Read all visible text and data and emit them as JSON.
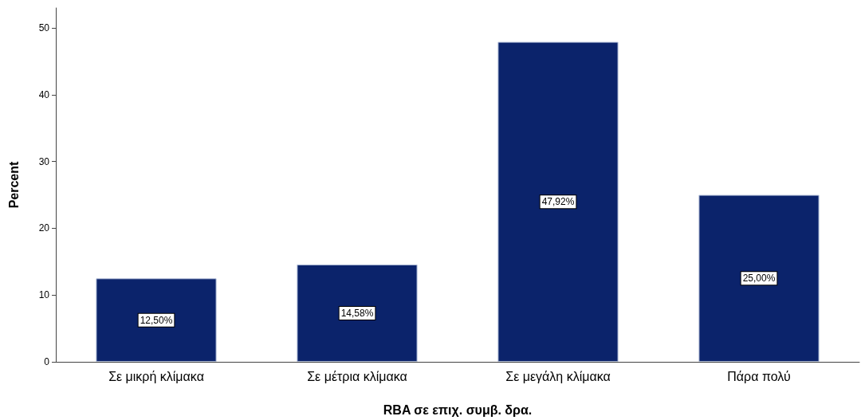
{
  "chart_data": {
    "type": "bar",
    "xlabel": "RBA σε επιχ. συμβ. δρα.",
    "ylabel": "Percent",
    "categories": [
      "Σε μικρή κλίμακα",
      "Σε μέτρια κλίμακα",
      "Σε μεγάλη κλίμακα",
      "Πάρα πολύ"
    ],
    "values": [
      12.5,
      14.58,
      47.92,
      25.0
    ],
    "value_labels": [
      "12,50%",
      "14,58%",
      "47,92%",
      "25,00%"
    ],
    "color": "#0b236b",
    "ylim": [
      0,
      53
    ],
    "yticks": [
      0,
      10,
      20,
      30,
      40,
      50
    ],
    "grid": false
  }
}
